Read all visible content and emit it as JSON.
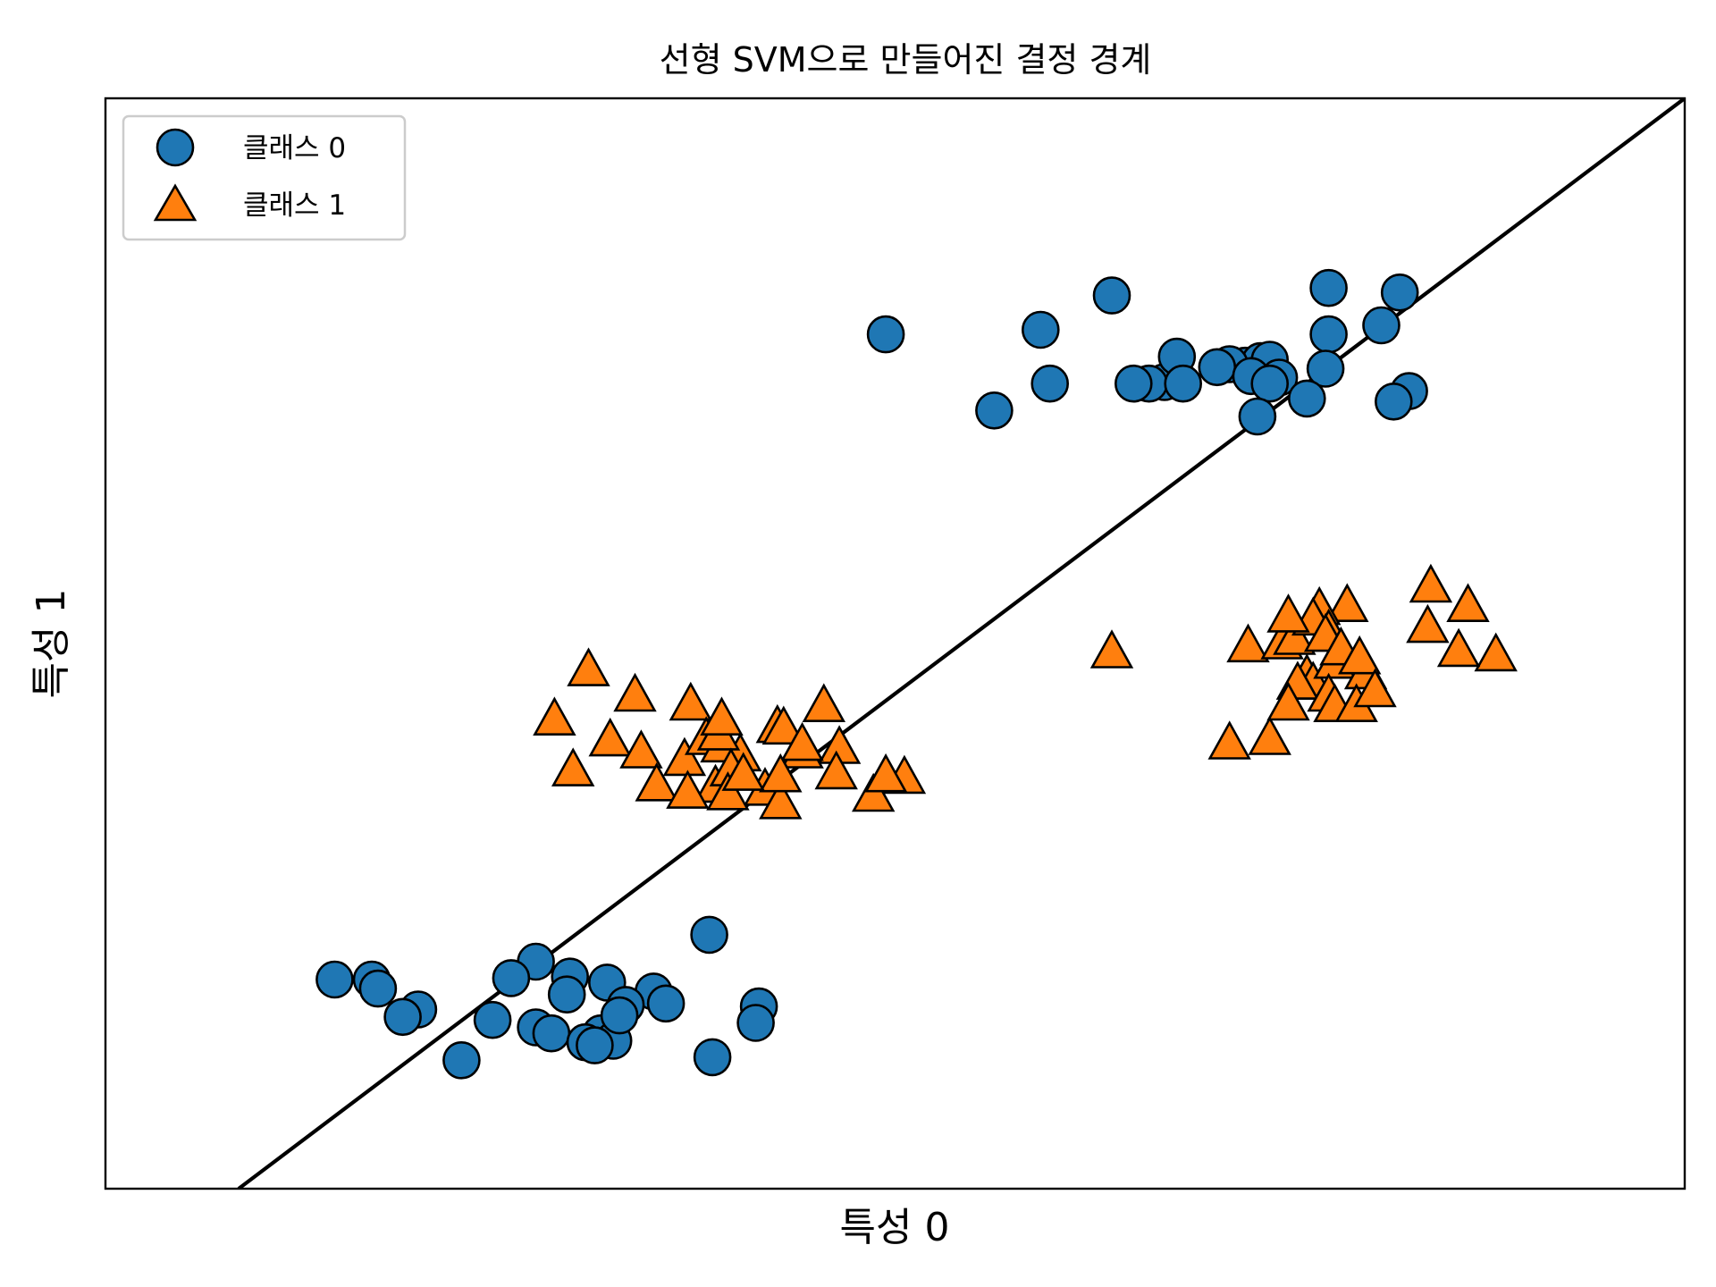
{
  "chart_data": {
    "type": "scatter",
    "title": "선형 SVM으로 만들어진 결정 경계",
    "xlabel": "특성 0",
    "ylabel": "특성 1",
    "xlim": [
      7.3,
      12.4
    ],
    "ylim": [
      -1.7,
      5.6
    ],
    "grid": false,
    "ticks_shown": false,
    "legend": {
      "placement": "top-left",
      "entries": [
        "클래스 0",
        "클래스 1"
      ]
    },
    "colors": {
      "class0": "#1f77b4",
      "class1": "#ff7f0e",
      "edge": "#000000",
      "line": "#000000"
    },
    "series": [
      {
        "name": "클래스 0",
        "marker": "circle",
        "x": [
          11.25,
          10.55,
          9.82,
          10.32,
          11.42,
          11.48,
          11.25,
          10.98,
          11.03,
          11.06,
          10.93,
          10.89,
          10.72,
          11.0,
          11.09,
          10.76,
          11.06,
          10.67,
          11.24,
          11.51,
          11.18,
          11.46,
          11.02,
          10.62,
          10.17,
          10.35,
          10.78,
          8.69,
          8.8,
          8.92,
          9.07,
          8.98,
          8.61,
          8.79,
          9.11,
          8.55,
          8.69,
          8.9,
          8.74,
          8.94,
          8.85,
          8.45,
          8.04,
          8.16,
          8.18,
          8.31,
          8.26,
          8.88,
          9.26,
          9.25,
          8.96,
          9.41,
          9.4
        ],
        "y": [
          4.33,
          4.28,
          4.02,
          4.05,
          4.08,
          4.3,
          4.02,
          3.81,
          3.84,
          3.85,
          3.82,
          3.8,
          3.7,
          3.74,
          3.73,
          3.87,
          3.69,
          3.69,
          3.79,
          3.64,
          3.59,
          3.57,
          3.47,
          3.69,
          3.51,
          3.69,
          3.69,
          -0.18,
          -0.28,
          -0.32,
          -0.38,
          -0.47,
          -0.29,
          -0.4,
          -0.46,
          -0.57,
          -0.62,
          -0.66,
          -0.66,
          -0.71,
          -0.72,
          -0.84,
          -0.3,
          -0.3,
          -0.36,
          -0.5,
          -0.55,
          -0.74,
          -0.82,
          0.0,
          -0.54,
          -0.48,
          -0.59
        ],
        "n": 53
      },
      {
        "name": "클래스 1",
        "marker": "triangle",
        "x": [
          8.75,
          8.86,
          9.01,
          9.19,
          9.47,
          9.62,
          9.49,
          9.67,
          8.93,
          9.55,
          9.17,
          9.78,
          8.81,
          9.24,
          9.29,
          9.03,
          9.66,
          9.08,
          9.27,
          9.88,
          9.35,
          9.28,
          9.82,
          9.43,
          9.18,
          9.48,
          9.32,
          9.55,
          9.29,
          9.48,
          9.31,
          9.36,
          10.55,
          10.99,
          11.18,
          11.2,
          11.27,
          11.1,
          11.31,
          11.22,
          11.14,
          11.25,
          11.2,
          11.12,
          11.24,
          11.29,
          11.37,
          11.15,
          11.12,
          11.35,
          11.25,
          11.27,
          11.57,
          11.79,
          11.7,
          11.34,
          11.4,
          11.67,
          11.58,
          10.93,
          11.06
        ],
        "y": [
          1.44,
          1.77,
          1.6,
          1.54,
          1.39,
          1.53,
          1.38,
          1.25,
          1.3,
          1.22,
          1.17,
          0.93,
          1.1,
          1.31,
          1.26,
          1.22,
          1.08,
          1.0,
          0.99,
          1.05,
          1.2,
          1.34,
          1.06,
          0.97,
          0.95,
          0.88,
          1.1,
          1.27,
          1.44,
          1.06,
          0.94,
          1.07,
          1.89,
          1.93,
          1.73,
          1.68,
          1.82,
          1.95,
          2.2,
          2.18,
          1.98,
          2.03,
          2.11,
          2.13,
          2.0,
          1.91,
          1.75,
          1.68,
          1.54,
          1.85,
          1.6,
          1.53,
          2.06,
          1.87,
          2.2,
          1.53,
          1.63,
          1.9,
          2.33,
          1.28,
          1.31
        ],
        "n": 61
      }
    ],
    "decision_boundary": {
      "x": [
        7.73,
        12.4
      ],
      "y": [
        -1.7,
        5.6
      ]
    }
  }
}
